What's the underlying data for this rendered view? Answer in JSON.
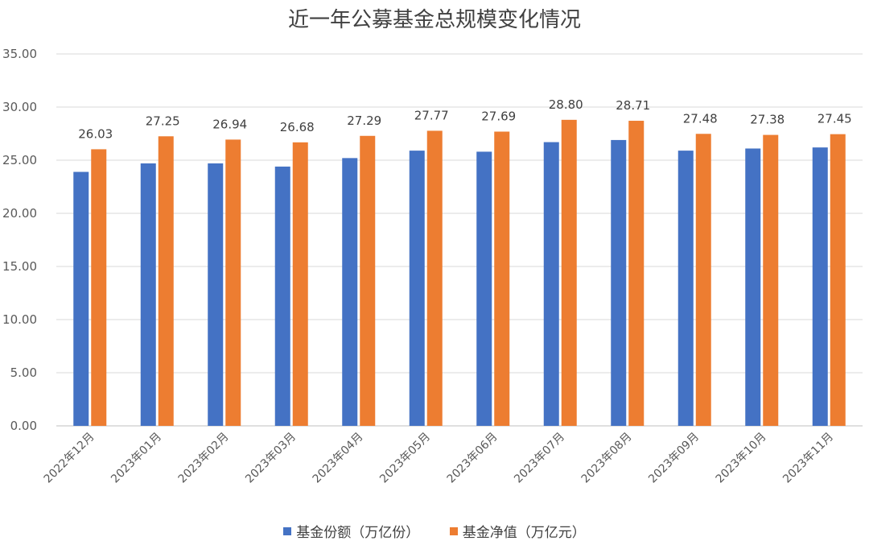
{
  "chart_data": {
    "type": "bar",
    "title": "近一年公募基金总规模变化情况",
    "categories": [
      "2022年12月",
      "2023年01月",
      "2023年02月",
      "2023年03月",
      "2023年04月",
      "2023年05月",
      "2023年06月",
      "2023年07月",
      "2023年08月",
      "2023年09月",
      "2023年10月",
      "2023年11月"
    ],
    "series": [
      {
        "name": "基金份额（万亿份）",
        "color": "#4472C4",
        "values": [
          23.9,
          24.7,
          24.7,
          24.4,
          25.2,
          25.9,
          25.8,
          26.7,
          26.9,
          25.9,
          26.1,
          26.2
        ],
        "data_labels": false
      },
      {
        "name": "基金净值（万亿元）",
        "color": "#ED7D31",
        "values": [
          26.03,
          27.25,
          26.94,
          26.68,
          27.29,
          27.77,
          27.69,
          28.8,
          28.71,
          27.48,
          27.38,
          27.45
        ],
        "data_labels": true
      }
    ],
    "ylim": [
      0,
      35
    ],
    "yticks": [
      "0.00",
      "5.00",
      "10.00",
      "15.00",
      "20.00",
      "25.00",
      "30.00",
      "35.00"
    ],
    "ytick_values": [
      0,
      5,
      10,
      15,
      20,
      25,
      30,
      35
    ],
    "grid": true,
    "legend": "bottom"
  }
}
